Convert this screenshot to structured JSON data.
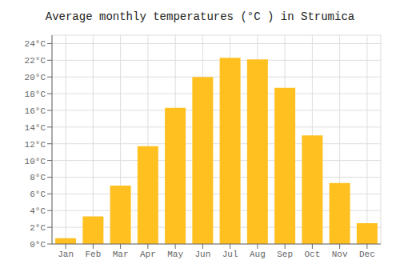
{
  "chart_data": {
    "type": "bar",
    "title": "Average monthly temperatures (°C ) in Strumica",
    "categories": [
      "Jan",
      "Feb",
      "Mar",
      "Apr",
      "May",
      "Jun",
      "Jul",
      "Aug",
      "Sep",
      "Oct",
      "Nov",
      "Dec"
    ],
    "values": [
      0.7,
      3.3,
      7.0,
      11.7,
      16.3,
      20.0,
      22.3,
      22.1,
      18.7,
      13.0,
      7.3,
      2.5
    ],
    "color": "#FFC020",
    "ylim": [
      0,
      25
    ],
    "yticks": [
      {
        "value": 0,
        "label": "0°C"
      },
      {
        "value": 2,
        "label": "2°C"
      },
      {
        "value": 4,
        "label": "4°C"
      },
      {
        "value": 6,
        "label": "6°C"
      },
      {
        "value": 8,
        "label": "8°C"
      },
      {
        "value": 10,
        "label": "10°C"
      },
      {
        "value": 12,
        "label": "12°C"
      },
      {
        "value": 14,
        "label": "14°C"
      },
      {
        "value": 16,
        "label": "16°C"
      },
      {
        "value": 18,
        "label": "18°C"
      },
      {
        "value": 20,
        "label": "20°C"
      },
      {
        "value": 22,
        "label": "22°C"
      },
      {
        "value": 24,
        "label": "24°C"
      }
    ],
    "grid": true
  }
}
